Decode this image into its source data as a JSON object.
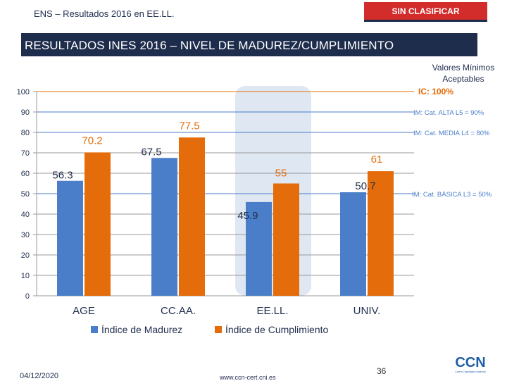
{
  "header": {
    "doc_title": "ENS – Resultados 2016 en EE.LL.",
    "classification": "SIN CLASIFICAR"
  },
  "slide_title": "RESULTADOS INES 2016 – NIVEL DE MADUREZ/CUMPLIMIENTO",
  "reference_header": "Valores Mínimos Aceptables",
  "chart_data": {
    "type": "bar",
    "categories": [
      "AGE",
      "CC.AA.",
      "EE.LL.",
      "UNIV."
    ],
    "series": [
      {
        "name": "Índice de Madurez",
        "values": [
          56.3,
          67.5,
          45.9,
          50.7
        ],
        "color": "#4a7ec8"
      },
      {
        "name": "Índice de Cumplimiento",
        "values": [
          70.2,
          77.5,
          55,
          61
        ],
        "color": "#e46c0a"
      }
    ],
    "value_labels": {
      "madurez": [
        "56.3",
        "67.5",
        "45.9",
        "50.7"
      ],
      "cumplimiento": [
        "70.2",
        "77.5",
        "55",
        "61"
      ]
    },
    "y_ticks": [
      0,
      10,
      20,
      30,
      40,
      50,
      60,
      70,
      80,
      90,
      100
    ],
    "ylim": [
      0,
      100
    ],
    "highlight_category": "EE.LL.",
    "reference_lines": [
      {
        "value": 100,
        "label": "IC: 100%",
        "color": "#e46c0a"
      },
      {
        "value": 90,
        "label": "IM: Cat. ALTA L5 = 90%",
        "color": "#4a7ec8"
      },
      {
        "value": 80,
        "label": "IM: Cat. MEDIA L4 = 80%",
        "color": "#4a7ec8"
      },
      {
        "value": 50,
        "label": "IM: Cat. BÁSICA L3 = 50%",
        "color": "#4a7ec8"
      }
    ],
    "legend_position": "bottom"
  },
  "footer": {
    "date": "04/12/2020",
    "url": "www.ccn-cert.cni.es",
    "page": "36",
    "logo_text": "CCN",
    "logo_subtitle": "Centro Criptológico Nacional"
  },
  "colors": {
    "navy": "#1f2d4d",
    "red": "#d22d2a",
    "blue": "#4a7ec8",
    "orange": "#e46c0a"
  }
}
